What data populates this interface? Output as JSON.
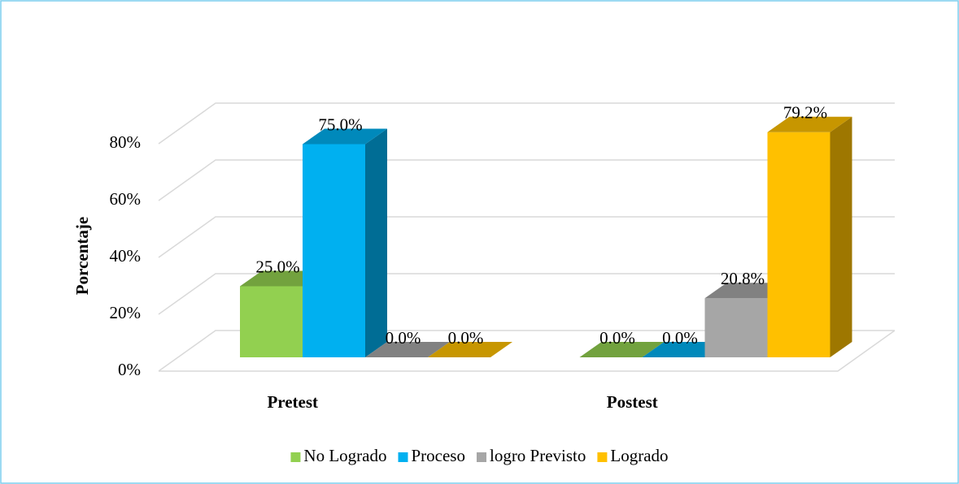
{
  "chart_data": {
    "type": "bar3d",
    "categories": [
      "Pretest",
      "Postest"
    ],
    "y_label": "Porcentaje",
    "series": [
      {
        "name": "No Logrado",
        "color": "#92d050",
        "values": [
          25.0,
          0.0
        ],
        "value_labels": [
          "25.0%",
          "0.0%"
        ]
      },
      {
        "name": "Proceso",
        "color": "#00b0f0",
        "values": [
          75.0,
          0.0
        ],
        "value_labels": [
          "75.0%",
          "0.0%"
        ]
      },
      {
        "name": "logro Previsto",
        "color": "#a6a6a6",
        "values": [
          0.0,
          20.8
        ],
        "value_labels": [
          "0.0%",
          "20.8%"
        ]
      },
      {
        "name": "Logrado",
        "color": "#ffc000",
        "values": [
          0.0,
          79.2
        ],
        "value_labels": [
          "0.0%",
          "79.2%"
        ]
      }
    ],
    "ylim": [
      0,
      80
    ],
    "yticks": [
      {
        "value": 0,
        "label": "0%"
      },
      {
        "value": 20,
        "label": "20%"
      },
      {
        "value": 40,
        "label": "40%"
      },
      {
        "value": 60,
        "label": "60%"
      },
      {
        "value": 80,
        "label": "80%"
      }
    ],
    "grid": true,
    "legend": "bottom"
  }
}
